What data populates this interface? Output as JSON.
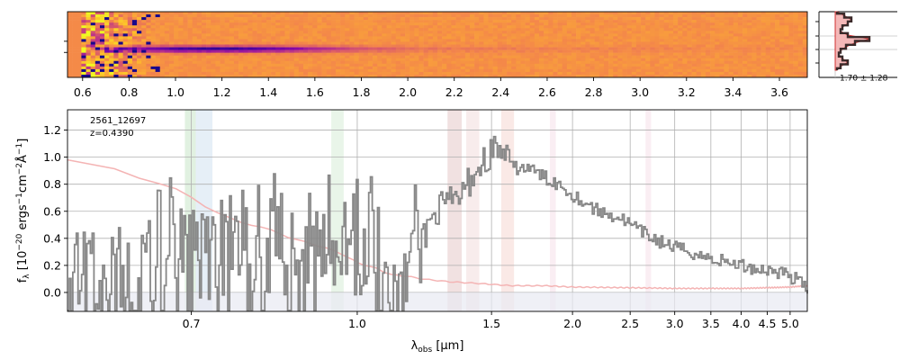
{
  "chart_data": [
    {
      "type": "heatmap",
      "panel": "2d-spectrum",
      "colormap": "plasma",
      "x_tick_labels": [
        "0.6",
        "0.8",
        "1.0",
        "1.2",
        "1.4",
        "1.6",
        "1.8",
        "2.0",
        "2.2",
        "2.4",
        "2.6",
        "2.8",
        "3.0",
        "3.2",
        "3.4",
        "3.6"
      ],
      "x_ticks": [
        0.6,
        0.8,
        1.0,
        1.2,
        1.4,
        1.6,
        1.8,
        2.0,
        2.2,
        2.4,
        2.6,
        2.8,
        3.0,
        3.2,
        3.4,
        3.6
      ],
      "xlim": [
        0.535,
        3.72
      ],
      "trace_center_fraction": 0.55
    },
    {
      "type": "line",
      "panel": "spatial-profile",
      "annotation": "1.70 ± 1.28",
      "profile": [
        0.05,
        0.25,
        0.45,
        0.35,
        0.2,
        0.15,
        0.35,
        0.95,
        0.55,
        0.3,
        0.15,
        0.1,
        0.2,
        0.35,
        0.15,
        0.05
      ],
      "colors": {
        "profile": "#3a2a2a",
        "fill": "#f4b8b8",
        "model": "#d03030"
      }
    },
    {
      "type": "line",
      "panel": "1d-spectrum",
      "object_id": "2561_12697",
      "redshift_label": "z=0.4390",
      "xlabel_base": "λ",
      "xlabel_sub": "obs",
      "xlabel_unit": " [μm]",
      "ylabel_base": "f",
      "ylabel_sub": "λ",
      "ylabel_unit": " [10",
      "ylabel_exp1": "−20",
      "ylabel_mid": " ergs",
      "ylabel_exp2": "−1",
      "ylabel_cm": "cm",
      "ylabel_exp3": "−2",
      "ylabel_ang": "Å",
      "ylabel_exp4": "−1",
      "ylabel_close": "]",
      "xlim": [
        0.62,
        5.42
      ],
      "x_axis_scale": "compressed (R-spaced)",
      "ylim": [
        -0.14,
        1.35
      ],
      "x_ticks": [
        0.7,
        1.0,
        1.5,
        2.0,
        2.5,
        3.0,
        3.5,
        4.0,
        4.5,
        5.0
      ],
      "x_tick_labels": [
        "0.7",
        "1.0",
        "1.5",
        "2.0",
        "2.5",
        "3.0",
        "3.5",
        "4.0",
        "4.5",
        "5.0"
      ],
      "y_ticks": [
        0.0,
        0.2,
        0.4,
        0.6,
        0.8,
        1.0,
        1.2
      ],
      "y_tick_labels": [
        "0.0",
        "0.2",
        "0.4",
        "0.6",
        "0.8",
        "1.0",
        "1.2"
      ],
      "grid": true,
      "colors": {
        "flux": "#878787",
        "error": "#f4b4b4",
        "zero_band": "#e8eaf2"
      },
      "flux_knots": [
        [
          0.62,
          0.0
        ],
        [
          0.65,
          0.05
        ],
        [
          0.68,
          0.55
        ],
        [
          0.7,
          0.45
        ],
        [
          0.73,
          0.25
        ],
        [
          0.76,
          0.3
        ],
        [
          0.8,
          0.45
        ],
        [
          0.85,
          0.4
        ],
        [
          0.9,
          0.5
        ],
        [
          0.95,
          0.45
        ],
        [
          1.0,
          0.4
        ],
        [
          1.05,
          0.45
        ],
        [
          1.1,
          0.3
        ],
        [
          1.15,
          0.3
        ],
        [
          1.2,
          0.4
        ],
        [
          1.25,
          0.6
        ],
        [
          1.3,
          0.65
        ],
        [
          1.35,
          0.7
        ],
        [
          1.4,
          0.85
        ],
        [
          1.45,
          0.95
        ],
        [
          1.5,
          1.05
        ],
        [
          1.55,
          1.05
        ],
        [
          1.6,
          0.92
        ],
        [
          1.7,
          0.92
        ],
        [
          1.8,
          0.85
        ],
        [
          1.9,
          0.8
        ],
        [
          2.0,
          0.72
        ],
        [
          2.2,
          0.6
        ],
        [
          2.4,
          0.55
        ],
        [
          2.6,
          0.45
        ],
        [
          2.8,
          0.38
        ],
        [
          3.0,
          0.33
        ],
        [
          3.2,
          0.3
        ],
        [
          3.4,
          0.26
        ],
        [
          3.6,
          0.24
        ],
        [
          3.8,
          0.22
        ],
        [
          4.0,
          0.2
        ],
        [
          4.2,
          0.18
        ],
        [
          4.4,
          0.17
        ],
        [
          4.6,
          0.16
        ],
        [
          4.8,
          0.15
        ],
        [
          5.0,
          0.12
        ],
        [
          5.2,
          0.08
        ],
        [
          5.4,
          0.02
        ]
      ],
      "error_knots": [
        [
          0.62,
          0.98
        ],
        [
          0.65,
          0.85
        ],
        [
          0.68,
          0.78
        ],
        [
          0.72,
          0.62
        ],
        [
          0.76,
          0.52
        ],
        [
          0.8,
          0.48
        ],
        [
          0.85,
          0.4
        ],
        [
          0.9,
          0.35
        ],
        [
          0.95,
          0.3
        ],
        [
          1.0,
          0.22
        ],
        [
          1.05,
          0.18
        ],
        [
          1.1,
          0.13
        ],
        [
          1.15,
          0.12
        ],
        [
          1.2,
          0.1
        ],
        [
          1.3,
          0.08
        ],
        [
          1.4,
          0.07
        ],
        [
          1.6,
          0.05
        ],
        [
          1.8,
          0.05
        ],
        [
          2.0,
          0.04
        ],
        [
          2.5,
          0.035
        ],
        [
          3.0,
          0.03
        ],
        [
          4.0,
          0.03
        ],
        [
          4.5,
          0.035
        ],
        [
          5.0,
          0.04
        ],
        [
          5.4,
          0.05
        ]
      ],
      "highlight_bands": [
        {
          "x0": 0.693,
          "x1": 0.705,
          "color": "#a8d8a8",
          "alpha": 0.35
        },
        {
          "x0": 0.705,
          "x1": 0.725,
          "color": "#b8d0e8",
          "alpha": 0.35
        },
        {
          "x0": 0.935,
          "x1": 0.965,
          "color": "#a8d8a8",
          "alpha": 0.25
        },
        {
          "x0": 1.3,
          "x1": 1.36,
          "color": "#d8a8a8",
          "alpha": 0.35
        },
        {
          "x0": 1.38,
          "x1": 1.44,
          "color": "#e8c0c0",
          "alpha": 0.3
        },
        {
          "x0": 1.55,
          "x1": 1.62,
          "color": "#f0c0b8",
          "alpha": 0.35
        },
        {
          "x0": 1.84,
          "x1": 1.88,
          "color": "#f0c8d8",
          "alpha": 0.3
        },
        {
          "x0": 2.66,
          "x1": 2.72,
          "color": "#f0c8d8",
          "alpha": 0.3
        }
      ]
    }
  ]
}
